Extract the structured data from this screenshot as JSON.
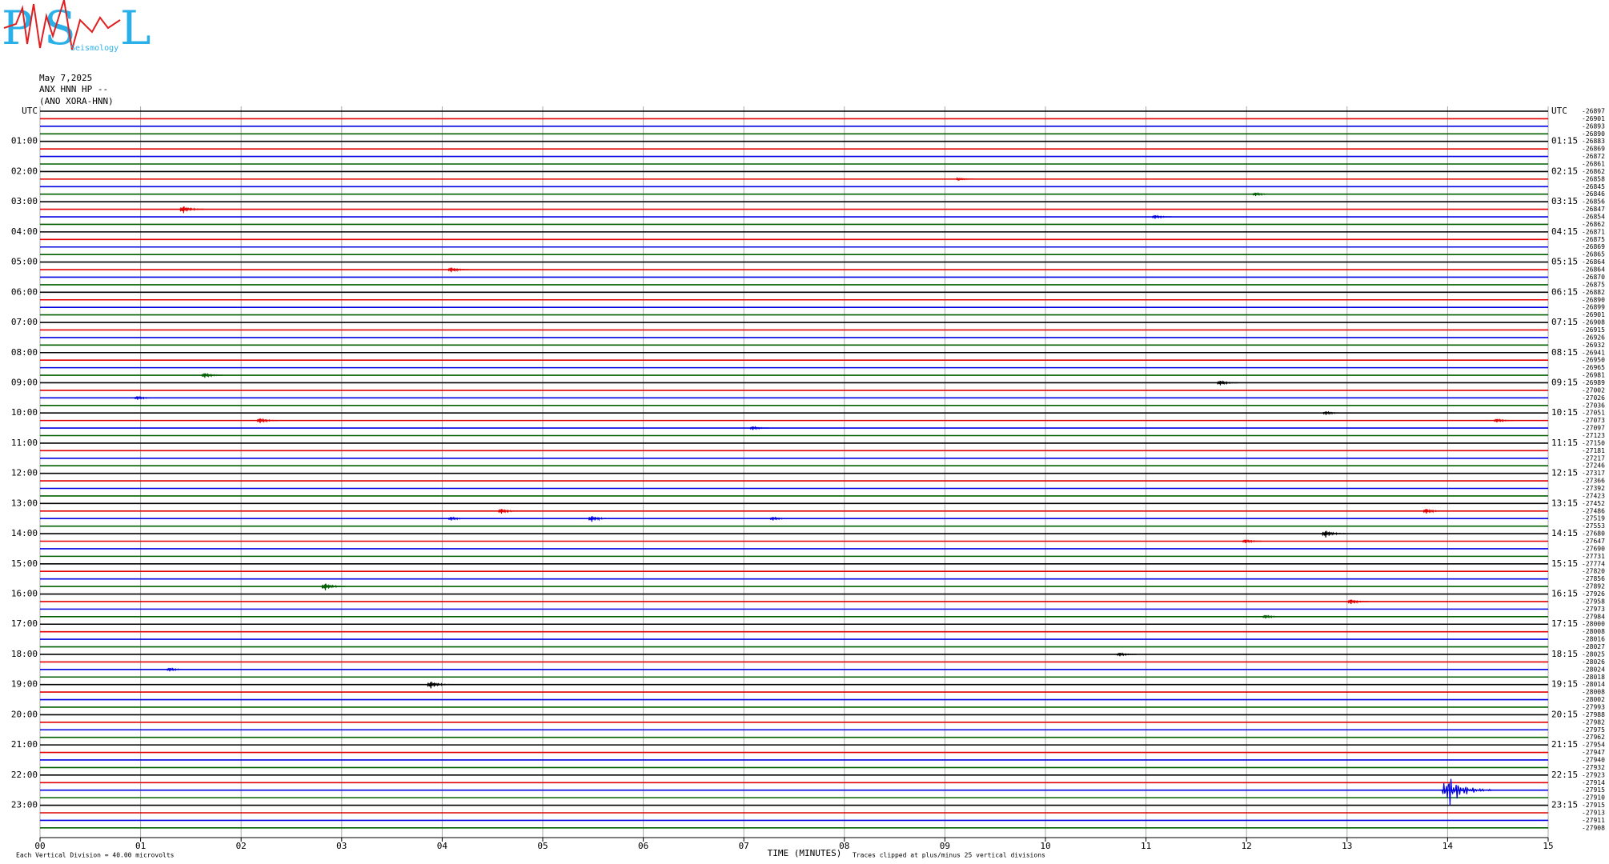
{
  "chart_data": {
    "type": "helicorder",
    "logo": {
      "letters": [
        "P",
        "S",
        "L"
      ],
      "caption": "Seismology"
    },
    "title": [
      "May 7,2025",
      "ANX HNN HP --",
      "(ANO XORA-HNN)"
    ],
    "xlabel": "TIME (MINUTES)",
    "footer_left": "Each Vertical Division =   40.00 microvolts",
    "footer_right": "Traces clipped at plus/minus 25 vertical divisions",
    "xlim": [
      0,
      15
    ],
    "xticks": [
      {
        "value": 0,
        "label": "00"
      },
      {
        "value": 1,
        "label": "01"
      },
      {
        "value": 2,
        "label": "02"
      },
      {
        "value": 3,
        "label": "03"
      },
      {
        "value": 4,
        "label": "04"
      },
      {
        "value": 5,
        "label": "05"
      },
      {
        "value": 6,
        "label": "06"
      },
      {
        "value": 7,
        "label": "07"
      },
      {
        "value": 8,
        "label": "08"
      },
      {
        "value": 9,
        "label": "09"
      },
      10,
      11,
      12,
      13,
      14,
      15
    ],
    "colors": [
      "#000000",
      "#e00000",
      "#0000e0",
      "#006000"
    ],
    "left_labels": [
      "UTC",
      "01:00",
      "02:00",
      "03:00",
      "04:00",
      "05:00",
      "06:00",
      "07:00",
      "08:00",
      "09:00",
      "10:00",
      "11:00",
      "12:00",
      "13:00",
      "14:00",
      "15:00",
      "16:00",
      "17:00",
      "18:00",
      "19:00",
      "20:00",
      "21:00",
      "22:00",
      "23:00"
    ],
    "right_labels": [
      "UTC",
      "01:15",
      "02:15",
      "03:15",
      "04:15",
      "05:15",
      "06:15",
      "07:15",
      "08:15",
      "09:15",
      "10:15",
      "11:15",
      "12:15",
      "13:15",
      "14:15",
      "15:15",
      "16:15",
      "17:15",
      "18:15",
      "19:15",
      "20:15",
      "21:15",
      "22:15",
      "23:15"
    ],
    "offsets": [
      -26897,
      -26901,
      -26893,
      -26890,
      -26883,
      -26869,
      -26872,
      -26861,
      -26862,
      -26858,
      -26845,
      -26846,
      -26856,
      -26847,
      -26854,
      -26862,
      -26871,
      -26875,
      -26869,
      -26865,
      -26864,
      -26864,
      -26870,
      -26875,
      -26882,
      -26890,
      -26899,
      -26901,
      -26908,
      -26915,
      -26926,
      -26932,
      -26941,
      -26950,
      -26965,
      -26981,
      -26989,
      -27002,
      -27026,
      -27036,
      -27051,
      -27073,
      -27097,
      -27123,
      -27150,
      -27181,
      -27217,
      -27246,
      -27317,
      -27366,
      -27392,
      -27423,
      -27452,
      -27486,
      -27519,
      -27553,
      -27680,
      -27647,
      -27690,
      -27731,
      -27774,
      -27820,
      -27856,
      -27892,
      -27926,
      -27958,
      -27973,
      -27984,
      -28000,
      -28008,
      -28016,
      -28027,
      -28025,
      -28026,
      -28024,
      -28018,
      -28014,
      -28008,
      -28002,
      -27993,
      -27988,
      -27982,
      -27975,
      -27962,
      -27954,
      -27947,
      -27940,
      -27932,
      -27923,
      -27914,
      -27915,
      -27910,
      -27915,
      -27913,
      -27911,
      -27908
    ],
    "events": {
      "row": [
        9,
        11,
        13,
        14,
        21,
        35,
        36,
        38,
        40,
        41,
        41,
        42,
        53,
        53,
        54,
        54,
        54,
        56,
        57,
        63,
        65,
        67,
        72,
        74,
        76,
        90
      ],
      "x": [
        9.15,
        12.1,
        1.44,
        11.1,
        4.1,
        1.65,
        11.75,
        0.98,
        12.8,
        14.5,
        2.2,
        7.1,
        4.6,
        13.8,
        4.1,
        5.5,
        7.3,
        12.8,
        12.0,
        2.85,
        13.05,
        12.2,
        10.75,
        1.3,
        3.9,
        14.05
      ],
      "amp": [
        1,
        1.5,
        3,
        1.5,
        2,
        2,
        2,
        1.5,
        1.5,
        1.5,
        2,
        1.5,
        2,
        2,
        1.5,
        2.5,
        1.5,
        3,
        1.5,
        3,
        2,
        1.5,
        1.5,
        1.5,
        3,
        12
      ]
    }
  }
}
